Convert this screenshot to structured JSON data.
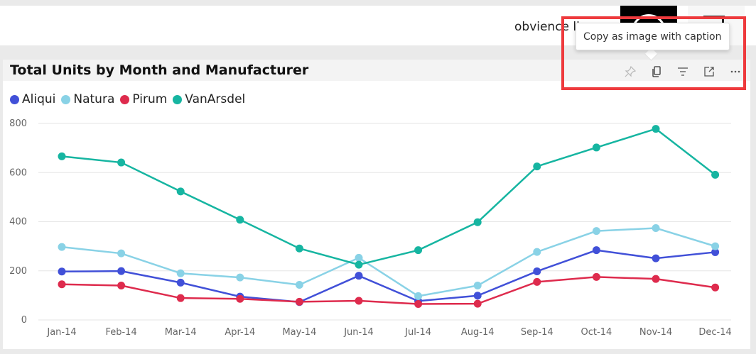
{
  "header": {
    "user_text": "obvience llc"
  },
  "visual": {
    "title": "Total Units by Month and Manufacturer",
    "toolbar": {
      "pin_icon": "pin-icon",
      "copy_icon": "copy-icon",
      "filter_icon": "filter-icon",
      "focus_icon": "focus-mode-icon",
      "more_icon": "more-options-icon"
    },
    "tooltip": "Copy as image with caption",
    "highlight_color": "#ee3a3d"
  },
  "chart_data": {
    "type": "line",
    "categories": [
      "Jan-14",
      "Feb-14",
      "Mar-14",
      "Apr-14",
      "May-14",
      "Jun-14",
      "Jul-14",
      "Aug-14",
      "Sep-14",
      "Oct-14",
      "Nov-14",
      "Dec-14"
    ],
    "ylim": [
      0,
      800
    ],
    "yticks": [
      0,
      200,
      400,
      600,
      800
    ],
    "grid": true,
    "legend_position": "top-left",
    "series": [
      {
        "name": "Aliqui",
        "color": "#4150d8",
        "values": [
          197,
          199,
          152,
          95,
          73,
          180,
          77,
          99,
          198,
          284,
          251,
          276
        ]
      },
      {
        "name": "Natura",
        "color": "#89d2e6",
        "values": [
          297,
          271,
          190,
          173,
          143,
          253,
          97,
          140,
          277,
          362,
          374,
          300
        ]
      },
      {
        "name": "Pirum",
        "color": "#de2b4d",
        "values": [
          145,
          140,
          89,
          86,
          74,
          78,
          65,
          66,
          155,
          175,
          167,
          132
        ]
      },
      {
        "name": "VanArsdel",
        "color": "#16b5a1",
        "values": [
          666,
          641,
          523,
          408,
          291,
          225,
          284,
          398,
          625,
          702,
          778,
          591
        ]
      }
    ]
  }
}
